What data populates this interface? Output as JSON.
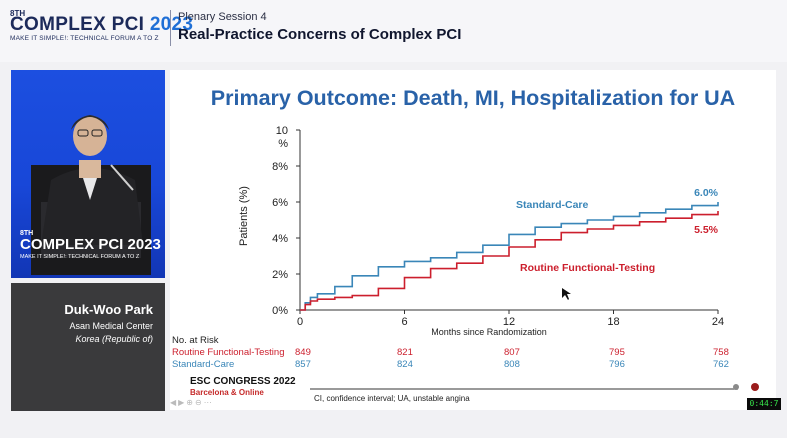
{
  "header": {
    "logo_sup": "8TH",
    "logo_name": "COMPLEX PCI",
    "logo_year": "2023",
    "logo_tagline": "MAKE IT SIMPLE!: TECHNICAL FORUM A TO Z",
    "session_label": "Plenary Session 4",
    "session_title": "Real-Practice Concerns of Complex PCI"
  },
  "speaker_video": {
    "logo_sup": "8TH",
    "logo_name": "COMPLEX PCI 2023",
    "logo_tagline": "MAKE IT SIMPLE!: TECHNICAL FORUM A TO Z"
  },
  "speaker": {
    "name": "Duk-Woo Park",
    "affiliation": "Asan Medical Center",
    "country": "Korea (Republic of)"
  },
  "slide": {
    "title": "Primary Outcome: Death, MI, Hospitalization for UA",
    "risk_table": {
      "header": "No. at Risk",
      "rows": [
        {
          "label": "Routine Functional-Testing",
          "values": [
            "849",
            "821",
            "807",
            "795",
            "758"
          ]
        },
        {
          "label": "Standard-Care",
          "values": [
            "857",
            "824",
            "808",
            "796",
            "762"
          ]
        }
      ]
    },
    "conference": "ESC CONGRESS 2022",
    "conference_sub": "Barcelona & Online",
    "footnote": "CI, confidence interval; UA, unstable angina",
    "progress": 0.99
  },
  "chart_data": {
    "type": "line",
    "title": "Primary Outcome: Death, MI, Hospitalization for UA",
    "xlabel": "Months since Randomization",
    "ylabel": "Patients (%)",
    "xlim": [
      0,
      24
    ],
    "ylim": [
      0,
      10
    ],
    "xticks": [
      0,
      6,
      12,
      18,
      24
    ],
    "x_tick_labels": [
      "0",
      "6",
      "12",
      "18",
      "24"
    ],
    "y_tick_labels": [
      "0%",
      "2%",
      "4%",
      "6%",
      "8%",
      "10\n%"
    ],
    "grid": false,
    "series": [
      {
        "name": "Standard-Care",
        "color": "#3a86b8",
        "end_label": "6.0%",
        "x": [
          0,
          0.3,
          0.6,
          1.0,
          2.0,
          3.0,
          4.5,
          6.0,
          7.5,
          9.0,
          10.5,
          12.0,
          13.5,
          15.0,
          16.5,
          18.0,
          19.5,
          21.0,
          22.5,
          24.0
        ],
        "y": [
          0,
          0.4,
          0.7,
          0.9,
          1.3,
          1.9,
          2.4,
          2.7,
          2.9,
          3.2,
          3.6,
          4.2,
          4.6,
          4.8,
          5.0,
          5.2,
          5.4,
          5.6,
          5.8,
          6.0
        ]
      },
      {
        "name": "Routine Functional-Testing",
        "color": "#cc1f2d",
        "end_label": "5.5%",
        "x": [
          0,
          0.3,
          0.6,
          1.0,
          2.0,
          3.0,
          4.5,
          6.0,
          7.5,
          9.0,
          10.5,
          12.0,
          13.5,
          15.0,
          16.5,
          18.0,
          19.5,
          21.0,
          22.5,
          24.0
        ],
        "y": [
          0,
          0.3,
          0.5,
          0.6,
          0.7,
          0.8,
          1.2,
          1.8,
          2.3,
          2.6,
          3.0,
          3.5,
          3.9,
          4.3,
          4.5,
          4.7,
          4.9,
          5.1,
          5.3,
          5.5
        ]
      }
    ]
  },
  "timer": "0:44:7"
}
